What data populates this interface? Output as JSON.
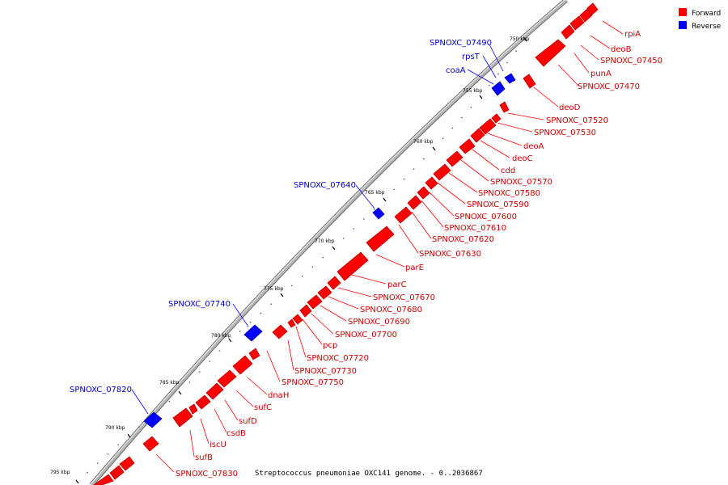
{
  "caption": "Streptococcus pneumoniae OXC141 genome. - 0..2036867",
  "legend": [
    {
      "label": "Forward",
      "color": "#ff0000"
    },
    {
      "label": "Reverse",
      "color": "#0000ff"
    }
  ],
  "colors": {
    "forward": "#ff0000",
    "reverse": "#0000ff",
    "forward_dark": "#b80000",
    "reverse_dark": "#0000a8",
    "backbone": "#9a9a9a"
  },
  "ticks": [
    "750 kbp",
    "755 kbp",
    "760 kbp",
    "765 kbp",
    "770 kbp",
    "775 kbp",
    "780 kbp",
    "785 kbp",
    "790 kbp",
    "795 kbp"
  ],
  "forward_genes": [
    "rpiA",
    "deoB",
    "SPNOXC_07450",
    "punA",
    "SPNOXC_07470",
    "deoD",
    "SPNOXC_07520",
    "SPNOXC_07530",
    "deoA",
    "deoC",
    "cdd",
    "SPNOXC_07570",
    "SPNOXC_07580",
    "SPNOXC_07590",
    "SPNOXC_07600",
    "SPNOXC_07610",
    "SPNOXC_07620",
    "SPNOXC_07630",
    "parE",
    "parC",
    "SPNOXC_07670",
    "SPNOXC_07680",
    "SPNOXC_07690",
    "SPNOXC_07700",
    "pcp",
    "SPNOXC_07720",
    "SPNOXC_07730",
    "SPNOXC_07750",
    "dnaH",
    "sufC",
    "sufD",
    "csdB",
    "iscU",
    "sufB",
    "SPNOXC_07830"
  ],
  "reverse_genes": [
    "SPNOXC_07490",
    "rpsT",
    "coaA",
    "SPNOXC_07640",
    "SPNOXC_07740",
    "SPNOXC_07820"
  ]
}
